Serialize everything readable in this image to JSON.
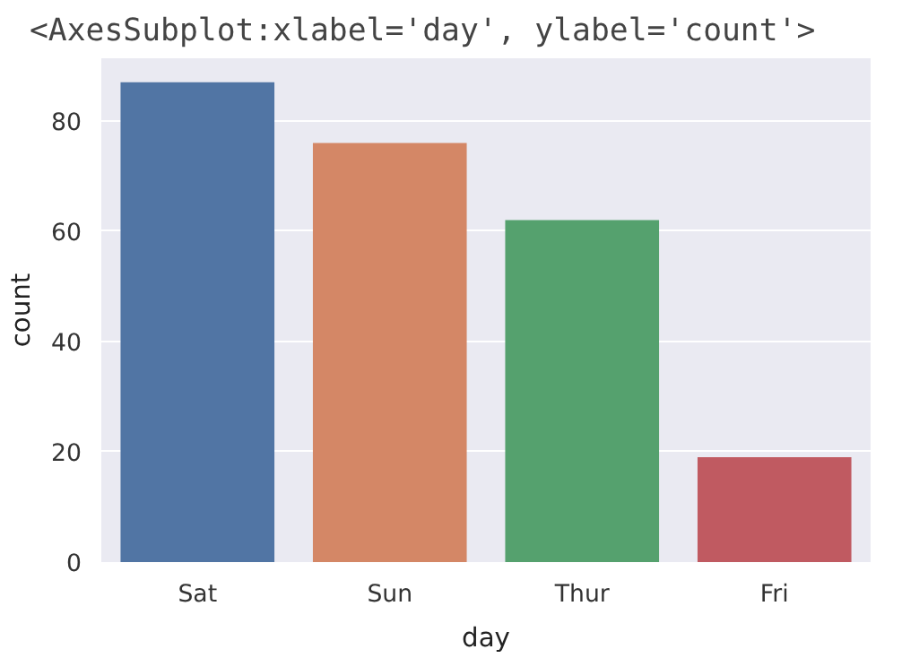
{
  "chart_data": {
    "type": "bar",
    "title": "<AxesSubplot:xlabel='day', ylabel='count'>",
    "xlabel": "day",
    "ylabel": "count",
    "categories": [
      "Sat",
      "Sun",
      "Thur",
      "Fri"
    ],
    "values": [
      87,
      76,
      62,
      19
    ],
    "colors": [
      "#5175a4",
      "#d48766",
      "#55a16e",
      "#c05a61"
    ],
    "ylim": [
      0,
      91.35
    ],
    "yticks": [
      0,
      20,
      40,
      60,
      80
    ],
    "grid": "y"
  }
}
